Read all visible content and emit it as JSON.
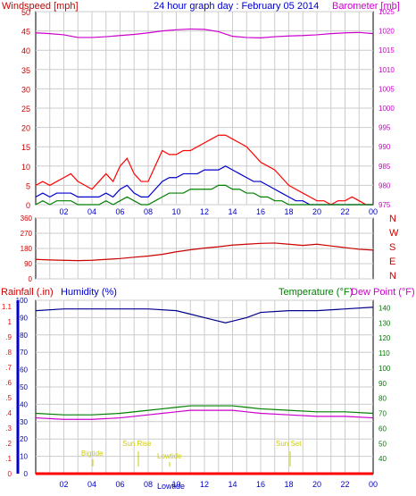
{
  "header": {
    "title": "24 hour graph day : February 05 2014",
    "left_label": "Windspeed [mph]",
    "right_label": "Barometer [mb]"
  },
  "colors": {
    "wind_avg": "#ff0000",
    "wind_gust": "#ff0000",
    "wind_avg2": "#0000cc",
    "wind_low": "#008000",
    "barometer": "#cc00cc",
    "direction": "#cc0000",
    "humidity": "#00008b",
    "temperature": "#008000",
    "dewpoint": "#cc00cc",
    "rain": "#ff0000",
    "grid": "#cccccc",
    "left_axis": "#cc0000",
    "right_axis_baro": "#cc00cc",
    "humidity_axis": "#0000cc",
    "temperature_axis": "#008000",
    "annotation": "#cccc00"
  },
  "bottom_header": {
    "rainfall_label": "Rainfall (.in)",
    "humidity_label": "Humidity (%)",
    "temperature_label": "Temperature (°F)",
    "dewpoint_label": "Dew Point (°F)"
  },
  "annotations": {
    "bigtide": "Bigtide",
    "sunrise": "Sun Rise",
    "lowtide1": "Lowtide",
    "lowtide2": "Lowtide",
    "sunset": "Sun Set"
  },
  "chart_data": [
    {
      "type": "line",
      "title": "24 hour graph day : February 05 2014",
      "ylabel": "Windspeed [mph]",
      "ylabel_right": "Barometer [mb]",
      "x_ticks": [
        "02",
        "04",
        "06",
        "08",
        "10",
        "12",
        "14",
        "16",
        "18",
        "20",
        "22",
        "00"
      ],
      "ylim": [
        0,
        50
      ],
      "yticks": [
        0,
        5,
        10,
        15,
        20,
        25,
        30,
        35,
        40,
        45,
        50
      ],
      "ylim_right": [
        975,
        1025
      ],
      "yticks_right": [
        975,
        980,
        985,
        990,
        995,
        1000,
        1005,
        1010,
        1015,
        1020,
        1025
      ],
      "grid": true,
      "series": [
        {
          "name": "",
          "axis": "left",
          "x": [
            0,
            0.5,
            1,
            1.5,
            2,
            2.5,
            3,
            3.5,
            4,
            4.5,
            5,
            5.5,
            6,
            6.5,
            7,
            7.5,
            8,
            8.5,
            9,
            9.5,
            10,
            10.5,
            11,
            11.5,
            12,
            12.5,
            13,
            13.5,
            14,
            14.5,
            15,
            15.5,
            16,
            16.5,
            17,
            17.5,
            18,
            18.5,
            19,
            19.5,
            20,
            20.5,
            21,
            21.5,
            22,
            22.5,
            23,
            23.5,
            24
          ],
          "values": [
            5,
            6,
            5,
            6,
            7,
            8,
            6,
            5,
            4,
            6,
            8,
            6,
            10,
            12,
            8,
            6,
            6,
            10,
            14,
            13,
            13,
            14,
            14,
            15,
            16,
            17,
            18,
            18,
            17,
            16,
            15,
            13,
            11,
            10,
            9,
            7,
            5,
            4,
            3,
            2,
            1,
            1,
            0,
            1,
            1,
            2,
            1,
            0,
            0
          ]
        },
        {
          "name": "",
          "axis": "left",
          "x": [
            0,
            0.5,
            1,
            1.5,
            2,
            2.5,
            3,
            3.5,
            4,
            4.5,
            5,
            5.5,
            6,
            6.5,
            7,
            7.5,
            8,
            8.5,
            9,
            9.5,
            10,
            10.5,
            11,
            11.5,
            12,
            12.5,
            13,
            13.5,
            14,
            14.5,
            15,
            15.5,
            16,
            16.5,
            17,
            17.5,
            18,
            18.5,
            19,
            19.5,
            20,
            20.5,
            21,
            21.5,
            22,
            22.5,
            23,
            23.5,
            24
          ],
          "values": [
            2,
            3,
            2,
            3,
            3,
            3,
            2,
            2,
            2,
            2,
            3,
            2,
            4,
            5,
            3,
            2,
            2,
            4,
            6,
            7,
            7,
            8,
            8,
            8,
            9,
            9,
            9,
            10,
            9,
            8,
            7,
            6,
            6,
            5,
            4,
            3,
            2,
            1,
            1,
            0,
            0,
            0,
            0,
            0,
            0,
            0,
            0,
            0,
            0
          ]
        },
        {
          "name": "",
          "axis": "left",
          "x": [
            0,
            0.5,
            1,
            1.5,
            2,
            2.5,
            3,
            3.5,
            4,
            4.5,
            5,
            5.5,
            6,
            6.5,
            7,
            7.5,
            8,
            8.5,
            9,
            9.5,
            10,
            10.5,
            11,
            11.5,
            12,
            12.5,
            13,
            13.5,
            14,
            14.5,
            15,
            15.5,
            16,
            16.5,
            17,
            17.5,
            18,
            18.5,
            19,
            19.5,
            20,
            20.5,
            21,
            21.5,
            22,
            22.5,
            23,
            23.5,
            24
          ],
          "values": [
            0,
            1,
            0,
            1,
            1,
            1,
            0,
            0,
            0,
            0,
            1,
            0,
            1,
            2,
            1,
            0,
            0,
            1,
            2,
            3,
            3,
            3,
            4,
            4,
            4,
            4,
            5,
            5,
            4,
            4,
            3,
            3,
            2,
            2,
            1,
            1,
            0,
            0,
            0,
            0,
            0,
            0,
            0,
            0,
            0,
            0,
            0,
            0,
            0
          ]
        },
        {
          "name": "",
          "axis": "right",
          "x": [
            0,
            1,
            2,
            3,
            4,
            5,
            6,
            7,
            8,
            9,
            10,
            11,
            12,
            13,
            14,
            15,
            16,
            17,
            18,
            19,
            20,
            21,
            22,
            23,
            24
          ],
          "values": [
            1019.5,
            1019.3,
            1019.0,
            1018.3,
            1018.3,
            1018.5,
            1018.8,
            1019.1,
            1019.5,
            1020.0,
            1020.3,
            1020.5,
            1020.4,
            1019.8,
            1018.6,
            1018.3,
            1018.2,
            1018.5,
            1018.7,
            1018.8,
            1019.0,
            1019.3,
            1019.5,
            1019.6,
            1019.3
          ]
        }
      ]
    },
    {
      "type": "line",
      "ylabel_right_letters": [
        "N",
        "W",
        "S",
        "E",
        "N"
      ],
      "ylim": [
        0,
        360
      ],
      "yticks": [
        0,
        90,
        180,
        270,
        360
      ],
      "x_ticks": [],
      "grid": true,
      "series": [
        {
          "name": "",
          "x": [
            0,
            1,
            2,
            3,
            4,
            5,
            6,
            7,
            8,
            9,
            10,
            11,
            12,
            13,
            14,
            15,
            16,
            17,
            18,
            19,
            20,
            21,
            22,
            23,
            24
          ],
          "values": [
            115,
            112,
            110,
            108,
            110,
            115,
            120,
            128,
            135,
            145,
            160,
            172,
            182,
            190,
            200,
            205,
            210,
            212,
            205,
            198,
            205,
            195,
            185,
            175,
            170
          ]
        }
      ]
    },
    {
      "type": "line",
      "ylabel": "Rainfall (.in)",
      "ylabel_left2": "Humidity (%)",
      "ylabel_right": "Temperature (°F)",
      "ylabel_right2": "Dew Point (°F)",
      "x_ticks": [
        "02",
        "04",
        "06",
        "08",
        "10",
        "12",
        "14",
        "16",
        "18",
        "20",
        "22",
        "00"
      ],
      "rain_ticks": [
        "0",
        ".1",
        ".2",
        ".3",
        ".4",
        ".5",
        ".6",
        ".7",
        ".8",
        ".9",
        "1",
        "1.1"
      ],
      "humidity_ticks": [
        0,
        10,
        20,
        30,
        40,
        50,
        60,
        70,
        80,
        90,
        100
      ],
      "temperature_ticks": [
        40,
        50,
        60,
        70,
        80,
        90,
        100,
        110,
        120,
        130,
        140
      ],
      "ylim_humidity": [
        0,
        100
      ],
      "ylim_temperature": [
        30,
        145
      ],
      "grid": true,
      "series": [
        {
          "name": "Humidity (%)",
          "axis": "humidity",
          "x": [
            0,
            2,
            4,
            6,
            8,
            10,
            11,
            12,
            13,
            13.5,
            14,
            15,
            16,
            18,
            20,
            22,
            24
          ],
          "values": [
            94,
            95,
            95,
            95,
            95,
            94,
            92,
            90,
            88,
            87,
            88,
            90,
            93,
            94,
            94,
            95,
            96
          ]
        },
        {
          "name": "Temperature (°F)",
          "axis": "temperature",
          "x": [
            0,
            2,
            4,
            6,
            8,
            9,
            10,
            11,
            12,
            13,
            14,
            15,
            16,
            18,
            20,
            22,
            24
          ],
          "values": [
            70,
            69,
            69,
            70,
            72,
            73,
            74,
            75,
            75,
            75,
            75,
            74,
            73,
            72,
            71,
            71,
            70
          ]
        },
        {
          "name": "Dew Point (°F)",
          "axis": "temperature",
          "x": [
            0,
            2,
            4,
            6,
            8,
            9,
            10,
            11,
            12,
            13,
            14,
            15,
            16,
            18,
            20,
            22,
            24
          ],
          "values": [
            67,
            66,
            66,
            67,
            69,
            70,
            71,
            72,
            72,
            72,
            72,
            71,
            70,
            69,
            68,
            68,
            67
          ]
        },
        {
          "name": "Rainfall (.in)",
          "axis": "rain",
          "x": [
            0,
            24
          ],
          "values": [
            0,
            0
          ]
        }
      ]
    }
  ]
}
